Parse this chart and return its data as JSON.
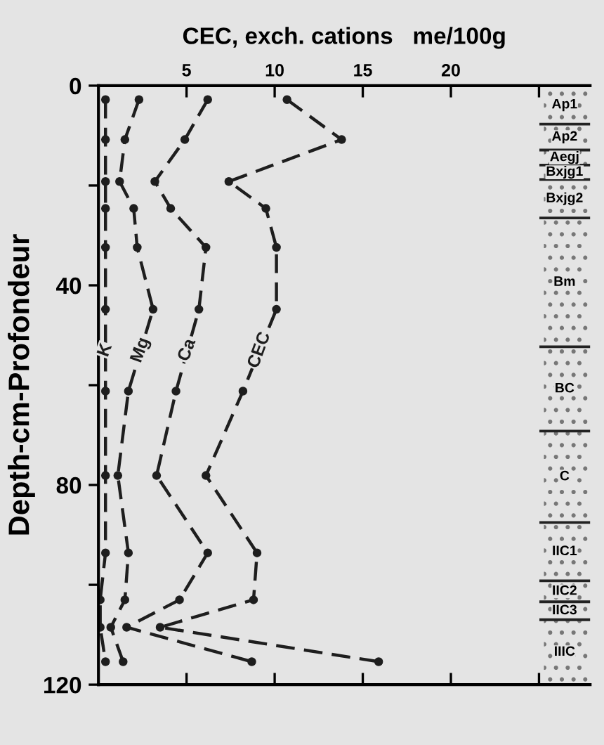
{
  "chart_data": {
    "type": "line",
    "xlabel": "CEC, exch. cations   me/100g",
    "ylabel": "Depth-cm-Profondeur",
    "orientation": "horizontal",
    "x": [
      2.8,
      10.8,
      19.2,
      24.6,
      32.4,
      44.8,
      61.2,
      78.1,
      93.6,
      103,
      108.5,
      115.4
    ],
    "series": [
      {
        "name": "K",
        "color": "#1e1e1e",
        "values": [
          0.4,
          0.4,
          0.4,
          0.4,
          0.4,
          0.4,
          0.4,
          0.4,
          0.4,
          0.1,
          0.1,
          0.4
        ]
      },
      {
        "name": "Mg",
        "color": "#1e1e1e",
        "values": [
          2.3,
          1.5,
          1.2,
          2.0,
          2.2,
          3.1,
          1.7,
          1.1,
          1.7,
          1.5,
          0.7,
          1.4
        ]
      },
      {
        "name": "Ca",
        "color": "#1e1e1e",
        "values": [
          6.2,
          4.9,
          3.2,
          4.1,
          6.1,
          5.7,
          4.4,
          3.3,
          6.2,
          4.6,
          1.6,
          8.7
        ]
      },
      {
        "name": "CEC",
        "color": "#1e1e1e",
        "values": [
          10.7,
          13.8,
          7.4,
          9.5,
          10.1,
          10.1,
          8.2,
          6.1,
          9.0,
          8.8,
          3.5,
          15.9
        ]
      }
    ],
    "xlim": [
      0,
      27.9
    ],
    "xticks": [
      5,
      10,
      15,
      20,
      {
        "value": 25,
        "label": null
      }
    ],
    "ylim": [
      120,
      0
    ],
    "yticks": [
      0,
      {
        "value": 20,
        "label": null
      },
      40,
      {
        "value": 60,
        "label": null
      },
      80,
      {
        "value": 100,
        "label": null
      },
      120
    ],
    "bands": [
      {
        "axis": "y",
        "from": 0,
        "to": 7.7,
        "label": "Ap1"
      },
      {
        "axis": "y",
        "from": 7.7,
        "to": 12.9,
        "label": "Ap2"
      },
      {
        "axis": "y",
        "from": 12.9,
        "to": 15.9,
        "label": "Aegj"
      },
      {
        "axis": "y",
        "from": 15.9,
        "to": 18.8,
        "label": "Bxjg1"
      },
      {
        "axis": "y",
        "from": 18.8,
        "to": 26.5,
        "label": "Bxjg2"
      },
      {
        "axis": "y",
        "from": 26.5,
        "to": 52.3,
        "label": "Bm"
      },
      {
        "axis": "y",
        "from": 52.3,
        "to": 69.2,
        "label": "BC"
      },
      {
        "axis": "y",
        "from": 69.2,
        "to": 87.5,
        "label": "C"
      },
      {
        "axis": "y",
        "from": 87.5,
        "to": 99.2,
        "label": "IIC1"
      },
      {
        "axis": "y",
        "from": 99.2,
        "to": 103.4,
        "label": "IIC2"
      },
      {
        "axis": "y",
        "from": 103.4,
        "to": 107,
        "label": "IIC3"
      },
      {
        "axis": "y",
        "from": 107,
        "to": 120,
        "label": "IIIC"
      }
    ],
    "marker": "circle",
    "line_style": "dashed",
    "grid": false
  }
}
